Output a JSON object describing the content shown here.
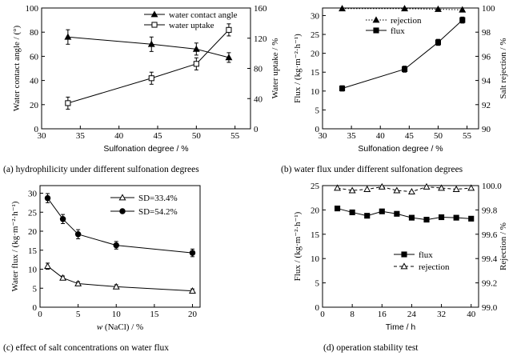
{
  "chart_data": [
    {
      "type": "line",
      "caption": "(a) hydrophilicity under different sulfonation degrees",
      "xlabel": "Sulfonation degree / %",
      "ylabel": "Water contact angle / (°)",
      "y2label": "Water uptake / %",
      "xlim": [
        30,
        57
      ],
      "xticks": [
        30,
        35,
        40,
        45,
        50,
        55
      ],
      "ylim": [
        0,
        100
      ],
      "yticks": [
        0,
        20,
        40,
        60,
        80,
        100
      ],
      "y2lim": [
        0,
        160
      ],
      "y2ticks": [
        0,
        40,
        80,
        120,
        160
      ],
      "legend_position": "top-right",
      "series": [
        {
          "name": "water contact angle",
          "axis": "left",
          "marker": "triangle-filled",
          "x": [
            33.4,
            44.2,
            50.0,
            54.2
          ],
          "y": [
            76,
            70,
            66,
            59
          ],
          "err": [
            6,
            6,
            5,
            4
          ]
        },
        {
          "name": "water uptake",
          "axis": "right",
          "marker": "square-open",
          "x": [
            33.4,
            44.2,
            50.0,
            54.2
          ],
          "y": [
            34,
            67,
            86,
            131
          ],
          "err": [
            8,
            8,
            8,
            8
          ]
        }
      ]
    },
    {
      "type": "line",
      "caption": "(b) water flux under different sulfonation degrees",
      "xlabel": "Sulfonation degree / %",
      "ylabel": "Flux / (kg·m⁻²·h⁻¹)",
      "y2label": "Salt rejection / %",
      "xlim": [
        30,
        57
      ],
      "xticks": [
        30,
        35,
        40,
        45,
        50,
        55
      ],
      "ylim": [
        0,
        32
      ],
      "yticks": [
        0,
        5,
        10,
        15,
        20,
        25,
        30
      ],
      "y2lim": [
        90,
        100
      ],
      "y2ticks": [
        90,
        92,
        94,
        96,
        98,
        100
      ],
      "legend_position": "top-right",
      "series": [
        {
          "name": "rejection",
          "axis": "right",
          "marker": "triangle-filled",
          "line": "dotted",
          "x": [
            33.4,
            44.2,
            50.0,
            54.2
          ],
          "y": [
            99.95,
            99.95,
            99.9,
            99.85
          ],
          "err": [
            0,
            0,
            0,
            0
          ]
        },
        {
          "name": "flux",
          "axis": "left",
          "marker": "square-filled",
          "line": "solid",
          "x": [
            33.4,
            44.2,
            50.0,
            54.2
          ],
          "y": [
            10.7,
            15.8,
            22.9,
            28.8
          ],
          "err": [
            0.7,
            0.8,
            0.8,
            0.8
          ]
        }
      ]
    },
    {
      "type": "line",
      "caption": "(c) effect of salt concentrations on water flux",
      "xlabel_prefix": "w",
      "xlabel": " (NaCl) / %",
      "ylabel": "Water flux / (kg·m⁻²·h⁻¹)",
      "xlim": [
        0,
        21
      ],
      "xticks": [
        0,
        5,
        10,
        15,
        20
      ],
      "ylim": [
        0,
        32
      ],
      "yticks": [
        0,
        5,
        10,
        15,
        20,
        25,
        30
      ],
      "legend_position": "top-right",
      "series": [
        {
          "name": "SD=33.4%",
          "axis": "left",
          "marker": "triangle-open",
          "x": [
            1,
            3,
            5,
            10,
            20
          ],
          "y": [
            10.8,
            7.7,
            6.2,
            5.4,
            4.3
          ],
          "err": [
            0.8,
            0.5,
            0.5,
            0.5,
            0.5
          ]
        },
        {
          "name": "SD=54.2%",
          "axis": "left",
          "marker": "circle-filled",
          "x": [
            1,
            3,
            5,
            10,
            20
          ],
          "y": [
            28.7,
            23.2,
            19.2,
            16.3,
            14.3
          ],
          "err": [
            1.2,
            1.2,
            1.2,
            1.0,
            1.0
          ]
        }
      ]
    },
    {
      "type": "line",
      "caption": "(d) operation stability test",
      "xlabel": "Time / h",
      "ylabel": "Flux / (kg·m⁻²·h⁻¹)",
      "y2label": "Rejection / %",
      "xlim": [
        0,
        42
      ],
      "xticks": [
        0,
        8,
        16,
        24,
        32,
        40
      ],
      "ylim": [
        0,
        25
      ],
      "yticks": [
        0,
        5,
        10,
        15,
        20,
        25
      ],
      "y2lim": [
        99.0,
        100.0
      ],
      "y2ticks": [
        99.0,
        99.2,
        99.4,
        99.6,
        99.8,
        100.0
      ],
      "legend_position": "bottom-right",
      "series": [
        {
          "name": "flux",
          "axis": "left",
          "marker": "square-filled",
          "line": "solid",
          "x": [
            4,
            8,
            12,
            16,
            20,
            24,
            28,
            32,
            36,
            40
          ],
          "y": [
            20.3,
            19.5,
            18.8,
            19.7,
            19.2,
            18.4,
            18.0,
            18.5,
            18.4,
            18.2
          ]
        },
        {
          "name": "rejection",
          "axis": "right",
          "marker": "triangle-open",
          "line": "dashed",
          "x": [
            4,
            8,
            12,
            16,
            20,
            24,
            28,
            32,
            36,
            40
          ],
          "y": [
            99.98,
            99.96,
            99.97,
            99.99,
            99.96,
            99.95,
            99.99,
            99.98,
            99.97,
            99.98
          ]
        }
      ]
    }
  ]
}
